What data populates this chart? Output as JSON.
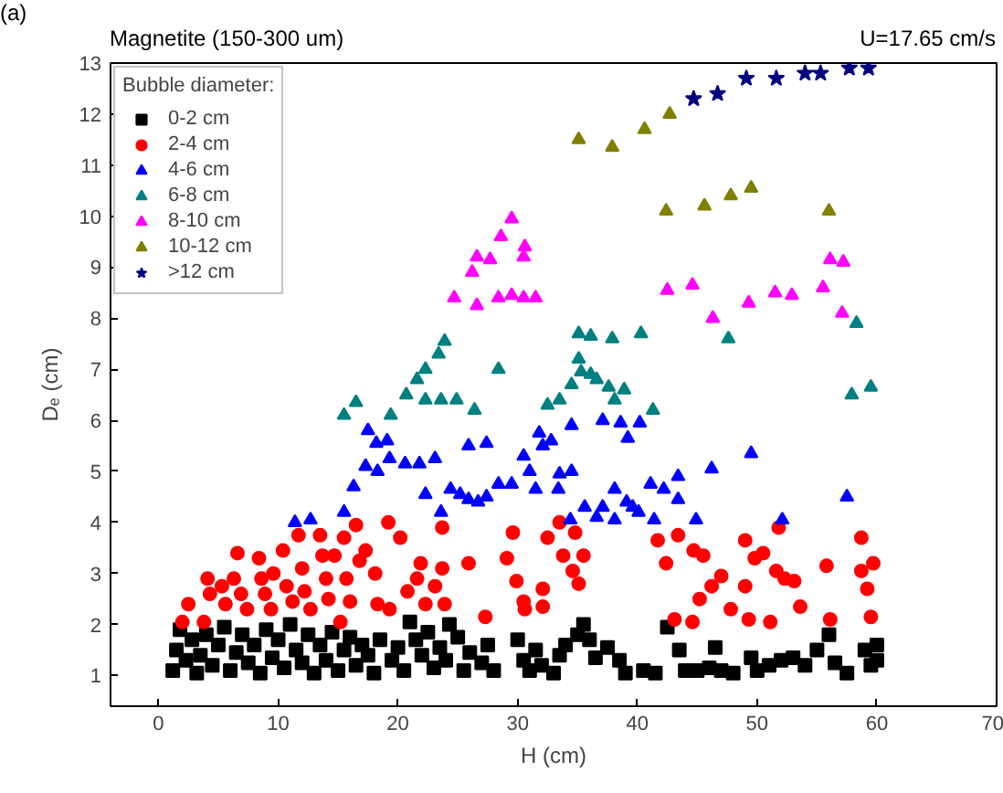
{
  "chart_data": {
    "type": "scatter",
    "title": "(a)",
    "annotations": [
      "Magnetite (150-300 um)",
      "U=17.65 cm/s"
    ],
    "xlabel": "H (cm)",
    "ylabel": "Dₑ (cm)",
    "legend_title": "Bubble diameter:",
    "legend": "top left",
    "grid": false,
    "xlim": [
      -4,
      70
    ],
    "xticks": [
      0,
      10,
      20,
      30,
      40,
      50,
      60,
      70
    ],
    "ylim": [
      0.4,
      13
    ],
    "yticks": [
      1,
      2,
      3,
      4,
      5,
      6,
      7,
      8,
      9,
      10,
      11,
      12,
      13
    ],
    "series": [
      {
        "name": "0-2 cm",
        "color": "#000000",
        "marker": "square",
        "x": [
          1.2,
          1.5,
          1.8,
          2.3,
          2.8,
          3.2,
          3.5,
          4.0,
          4.5,
          5.0,
          5.5,
          6.0,
          6.5,
          7.0,
          7.5,
          8.0,
          8.5,
          9.0,
          9.5,
          10.0,
          10.5,
          11.0,
          11.5,
          12.0,
          12.5,
          13.0,
          13.5,
          14.0,
          14.5,
          15.0,
          15.5,
          16.0,
          16.5,
          17.0,
          17.5,
          18.0,
          18.5,
          19.5,
          20.0,
          20.5,
          21.0,
          21.5,
          22.0,
          22.5,
          23.0,
          23.5,
          24.0,
          24.3,
          25.0,
          25.5,
          26.0,
          27.0,
          27.5,
          28.0,
          30.0,
          30.5,
          31.0,
          31.5,
          32.0,
          33.0,
          33.5,
          34.0,
          35.0,
          35.5,
          36.0,
          36.5,
          37.5,
          38.5,
          39.0,
          40.5,
          41.5,
          42.5,
          43.5,
          44.0,
          45.0,
          46.0,
          46.5,
          47.0,
          48.0,
          49.5,
          50.0,
          51.0,
          52.0,
          53.0,
          54.0,
          55.0,
          56.0,
          56.5,
          57.5,
          59.0,
          59.5,
          60.0,
          60.0
        ],
        "values": [
          1.1,
          1.5,
          1.9,
          1.3,
          1.7,
          1.05,
          1.4,
          1.8,
          1.2,
          1.6,
          1.95,
          1.1,
          1.45,
          1.8,
          1.25,
          1.6,
          1.05,
          1.9,
          1.35,
          1.7,
          1.15,
          2.0,
          1.5,
          1.25,
          1.8,
          1.05,
          1.6,
          1.3,
          1.85,
          1.1,
          1.5,
          1.75,
          1.2,
          1.6,
          1.4,
          1.05,
          1.7,
          1.3,
          1.55,
          1.1,
          2.05,
          1.7,
          1.4,
          1.85,
          1.15,
          1.55,
          1.3,
          2.0,
          1.75,
          1.1,
          1.45,
          1.25,
          1.6,
          1.1,
          1.7,
          1.3,
          1.1,
          1.5,
          1.2,
          1.05,
          1.4,
          1.6,
          1.8,
          2.0,
          1.7,
          1.35,
          1.55,
          1.3,
          1.05,
          1.1,
          1.05,
          1.95,
          1.5,
          1.1,
          1.1,
          1.15,
          1.55,
          1.1,
          1.05,
          1.35,
          1.1,
          1.2,
          1.3,
          1.35,
          1.2,
          1.5,
          1.8,
          1.25,
          1.05,
          1.5,
          1.2,
          1.3,
          1.6
        ]
      },
      {
        "name": "2-4 cm",
        "color": "#ff0000",
        "marker": "circle",
        "x": [
          2.0,
          2.5,
          3.8,
          4.1,
          4.3,
          5.3,
          5.6,
          6.6,
          6.3,
          6.9,
          7.4,
          8.4,
          8.6,
          8.9,
          9.4,
          9.6,
          10.4,
          10.7,
          11.2,
          11.7,
          12.0,
          12.2,
          12.7,
          13.5,
          13.7,
          14.0,
          14.2,
          14.7,
          15.2,
          15.5,
          15.7,
          16.0,
          16.5,
          16.8,
          17.3,
          18.1,
          18.3,
          19.2,
          19.3,
          20.2,
          20.8,
          21.6,
          21.9,
          22.3,
          23.1,
          23.7,
          23.7,
          23.9,
          25.9,
          27.3,
          29.1,
          29.6,
          29.9,
          30.5,
          30.6,
          32.1,
          32.1,
          32.5,
          33.8,
          33.5,
          34.8,
          34.6,
          35.1,
          35.5,
          41.7,
          42.4,
          43.1,
          43.4,
          44.7,
          45.5,
          44.6,
          45.2,
          46.2,
          47.0,
          47.8,
          49.0,
          49.0,
          49.3,
          49.8,
          50.5,
          51.1,
          51.6,
          51.8,
          52.3,
          53.1,
          53.6,
          55.8,
          56.1,
          58.7,
          58.7,
          59.2,
          59.5,
          59.7
        ],
        "values": [
          2.05,
          2.4,
          2.05,
          2.9,
          2.6,
          2.75,
          2.4,
          3.4,
          2.9,
          2.6,
          2.3,
          3.3,
          2.9,
          2.6,
          2.3,
          3.0,
          3.45,
          2.75,
          2.45,
          3.75,
          3.1,
          2.65,
          2.3,
          3.75,
          3.35,
          2.9,
          2.5,
          3.35,
          2.05,
          3.7,
          2.9,
          2.45,
          3.95,
          3.25,
          3.45,
          3.0,
          2.4,
          4.0,
          2.3,
          3.7,
          2.65,
          2.9,
          3.2,
          2.4,
          2.75,
          3.1,
          3.9,
          2.4,
          3.2,
          2.15,
          3.3,
          3.8,
          2.85,
          2.45,
          2.3,
          2.7,
          2.35,
          3.7,
          3.35,
          4.0,
          3.8,
          3.05,
          2.8,
          3.35,
          3.65,
          3.2,
          2.1,
          3.75,
          3.45,
          3.35,
          2.05,
          2.5,
          2.75,
          2.95,
          2.3,
          3.65,
          2.75,
          2.1,
          3.3,
          3.4,
          2.05,
          3.05,
          3.9,
          2.9,
          2.85,
          2.35,
          3.15,
          2.1,
          3.7,
          3.05,
          2.7,
          2.15,
          3.2
        ]
      },
      {
        "name": "4-6 cm",
        "color": "#0000ff",
        "marker": "triangle",
        "x": [
          11.4,
          12.7,
          15.5,
          16.3,
          17.3,
          18.3,
          17.5,
          18.2,
          19.1,
          19.3,
          20.6,
          21.8,
          23.1,
          22.3,
          23.6,
          24.4,
          25.2,
          25.9,
          26.7,
          27.4,
          25.9,
          27.4,
          28.4,
          29.5,
          30.5,
          31.0,
          31.5,
          31.8,
          32.1,
          32.8,
          33.4,
          33.5,
          34.5,
          34.5,
          34.4,
          35.6,
          36.6,
          37.1,
          38.1,
          38.1,
          37.1,
          38.6,
          39.2,
          40.2,
          39.1,
          39.6,
          40.1,
          41.1,
          42.2,
          43.4,
          43.4,
          41.4,
          44.9,
          46.2,
          49.5,
          52.1,
          57.5
        ],
        "values": [
          4.0,
          4.05,
          4.2,
          4.7,
          5.1,
          5.0,
          5.8,
          5.55,
          5.6,
          5.25,
          5.15,
          5.15,
          5.25,
          4.55,
          4.2,
          4.65,
          4.55,
          4.45,
          4.4,
          4.5,
          5.5,
          5.55,
          4.75,
          4.75,
          5.3,
          5.0,
          4.65,
          5.75,
          5.5,
          5.6,
          4.65,
          4.95,
          5.0,
          5.9,
          4.05,
          4.3,
          4.1,
          4.3,
          4.05,
          4.65,
          6.0,
          5.95,
          5.65,
          5.95,
          4.4,
          4.3,
          4.2,
          4.75,
          4.65,
          4.9,
          4.45,
          4.05,
          4.05,
          5.05,
          5.35,
          4.05,
          4.5
        ]
      },
      {
        "name": "6-8 cm",
        "color": "#008080",
        "marker": "triangle",
        "x": [
          35.1,
          36.1,
          37.9,
          40.3,
          47.6,
          58.3,
          28.4,
          23.9,
          23.4,
          22.3,
          21.6,
          20.7,
          19.4,
          16.5,
          15.5,
          22.3,
          23.6,
          24.9,
          26.4,
          32.5,
          33.5,
          34.5,
          35.3,
          36.1,
          36.6,
          35.1,
          37.6,
          38.9,
          38.1,
          41.3,
          57.9,
          59.5
        ],
        "values": [
          7.7,
          7.65,
          7.6,
          7.7,
          7.6,
          7.9,
          7.0,
          7.55,
          7.3,
          7.0,
          6.8,
          6.5,
          6.1,
          6.35,
          6.1,
          6.4,
          6.4,
          6.4,
          6.2,
          6.3,
          6.4,
          6.7,
          6.95,
          6.9,
          6.8,
          7.2,
          6.65,
          6.6,
          6.4,
          6.2,
          6.5,
          6.65
        ]
      },
      {
        "name": "8-10 cm",
        "color": "#ff00ff",
        "marker": "triangle",
        "x": [
          29.5,
          28.6,
          30.6,
          26.6,
          27.7,
          30.5,
          26.2,
          24.7,
          26.6,
          28.4,
          29.5,
          30.5,
          31.5,
          42.5,
          44.6,
          46.3,
          49.3,
          51.5,
          52.9,
          55.5,
          56.1,
          57.2,
          57.1
        ],
        "values": [
          9.95,
          9.6,
          9.4,
          9.2,
          9.15,
          9.2,
          8.9,
          8.4,
          8.25,
          8.4,
          8.45,
          8.4,
          8.4,
          8.55,
          8.65,
          8.0,
          8.3,
          8.5,
          8.45,
          8.6,
          9.15,
          9.1,
          8.1
        ]
      },
      {
        "name": "10-12 cm",
        "color": "#808000",
        "marker": "triangle",
        "x": [
          35.1,
          37.9,
          40.6,
          42.7,
          42.4,
          45.6,
          47.8,
          49.5,
          56.0
        ],
        "values": [
          11.5,
          11.35,
          11.7,
          12.0,
          10.1,
          10.2,
          10.4,
          10.55,
          10.1
        ]
      },
      {
        "name": ">12 cm",
        "color": "#000080",
        "marker": "star",
        "x": [
          44.7,
          46.7,
          49.1,
          51.6,
          54.0,
          55.3,
          57.7,
          59.3
        ],
        "values": [
          12.3,
          12.4,
          12.7,
          12.7,
          12.8,
          12.8,
          12.9,
          12.9
        ]
      }
    ]
  }
}
